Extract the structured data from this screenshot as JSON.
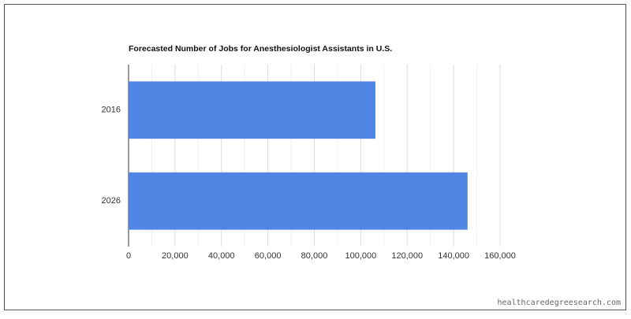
{
  "chart_data": {
    "type": "hbar",
    "title": "Forecasted Number of Jobs for Anesthesiologist Assistants in U.S.",
    "categories": [
      "2016",
      "2026"
    ],
    "values": [
      106300,
      146000
    ],
    "color": "#5185e3",
    "xlim": [
      0,
      160000
    ],
    "xticks": [
      0,
      {
        "value": 20000,
        "label": "20,000"
      },
      {
        "value": 40000,
        "label": "40,000"
      },
      {
        "value": 60000,
        "label": "60,000"
      },
      {
        "value": 80000,
        "label": "80,000"
      },
      {
        "value": 100000,
        "label": "100,000"
      },
      {
        "value": 120000,
        "label": "120,000"
      },
      {
        "value": 140000,
        "label": "140,000"
      },
      {
        "value": 160000,
        "label": "160,000"
      }
    ],
    "grid": true
  },
  "watermark": "healthcaredegreesearch.com"
}
